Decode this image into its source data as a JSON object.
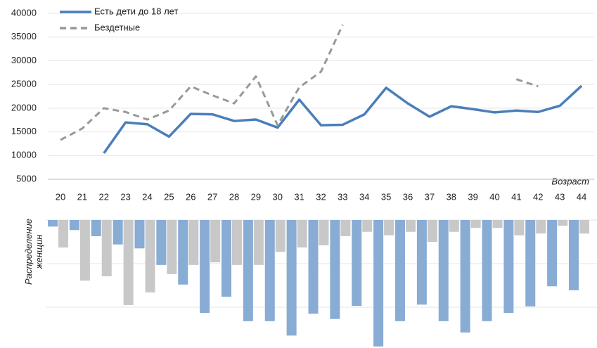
{
  "chart_data": [
    {
      "type": "line",
      "x_label": "Возраст",
      "categories": [
        "20",
        "21",
        "22",
        "23",
        "24",
        "25",
        "26",
        "27",
        "28",
        "29",
        "30",
        "31",
        "32",
        "33",
        "34",
        "35",
        "36",
        "37",
        "38",
        "39",
        "40",
        "41",
        "42",
        "43",
        "44"
      ],
      "series": [
        {
          "name": "Есть дети до 18 лет",
          "color": "#4a7ebb",
          "dashed": false,
          "values": [
            null,
            null,
            10500,
            17000,
            16600,
            14000,
            18800,
            18700,
            17300,
            17600,
            15900,
            21800,
            16400,
            16500,
            18700,
            24300,
            21000,
            18200,
            20400,
            19800,
            19100,
            19500,
            19200,
            20500,
            24700
          ]
        },
        {
          "name": "Бездетные",
          "color": "#999999",
          "dashed": true,
          "values": [
            13300,
            15700,
            20000,
            19200,
            17600,
            19500,
            24600,
            22700,
            21000,
            26700,
            16400,
            24400,
            27700,
            37600,
            null,
            null,
            null,
            null,
            null,
            null,
            null,
            26100,
            24600,
            null,
            null
          ]
        }
      ],
      "ylim": [
        5000,
        40000
      ],
      "yticks": [
        5000,
        10000,
        15000,
        20000,
        25000,
        30000,
        35000,
        40000
      ],
      "grid": true,
      "legend": "top-left"
    },
    {
      "type": "bar-down",
      "y_label": "Распределение женщин",
      "series": [
        {
          "color": "#88acd4",
          "values": [
            1.5,
            2.3,
            3.7,
            5.6,
            6.5,
            10.3,
            14.8,
            21.3,
            17.6,
            23.2,
            23.2,
            26.5,
            21.5,
            22.7,
            19.7,
            29.0,
            23.2,
            19.4,
            23.2,
            25.8,
            23.2,
            21.3,
            19.8,
            15.2,
            16.1
          ]
        },
        {
          "color": "#c8c8c8",
          "values": [
            6.3,
            13.9,
            12.9,
            19.5,
            16.6,
            12.4,
            10.3,
            9.7,
            10.3,
            10.3,
            7.3,
            6.3,
            5.8,
            3.7,
            2.7,
            3.5,
            2.7,
            5.0,
            2.7,
            1.8,
            1.8,
            3.5,
            3.1,
            1.3,
            3.1
          ]
        }
      ],
      "ylim": [
        0,
        30
      ],
      "yticks": [
        0,
        10,
        20
      ],
      "grid": true
    }
  ]
}
